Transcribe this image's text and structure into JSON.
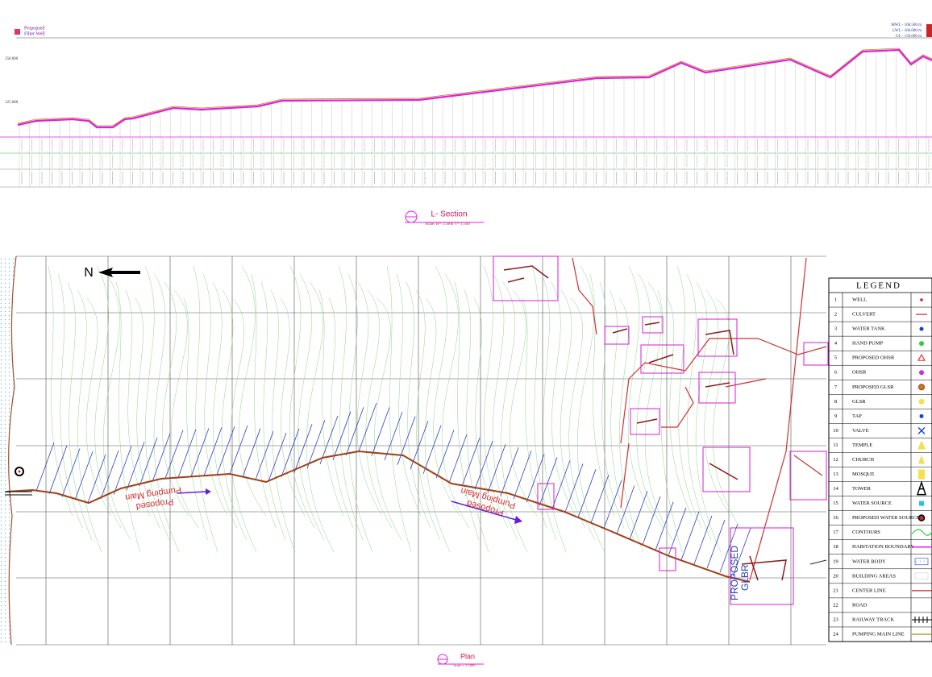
{
  "lsection": {
    "filter_well": [
      "Propopsed",
      "Filter Well"
    ],
    "levels": [
      "MWL - 168.500 m",
      "LWL - 166.000 m",
      "GL - 150.000 m"
    ],
    "axis_labels": [
      "150.000",
      "125.000"
    ],
    "title": "L- Section",
    "scale": "Scale: H= 1:5000  V= 1:500"
  },
  "plan": {
    "north": "N",
    "pumping_main": [
      "Proposed",
      "Pumping Main"
    ],
    "glbr": [
      "PROPOSED",
      "GLBR"
    ],
    "title": "Plan",
    "scale": "Scale = 1:5000"
  },
  "legend": {
    "title": "LEGEND",
    "items": [
      {
        "no": "1",
        "name": "WELL"
      },
      {
        "no": "2",
        "name": "CULVERT"
      },
      {
        "no": "3",
        "name": "WATER TANK"
      },
      {
        "no": "4",
        "name": "HAND PUMP"
      },
      {
        "no": "5",
        "name": "PROPOSED OHSR"
      },
      {
        "no": "6",
        "name": "OHSR"
      },
      {
        "no": "7",
        "name": "PROPOSED GLSR"
      },
      {
        "no": "8",
        "name": "GLSR"
      },
      {
        "no": "9",
        "name": "TAP"
      },
      {
        "no": "10",
        "name": "VALVE"
      },
      {
        "no": "11",
        "name": "TEMPLE"
      },
      {
        "no": "12",
        "name": "CHURCH"
      },
      {
        "no": "13",
        "name": "MOSQUE"
      },
      {
        "no": "14",
        "name": "TOWER"
      },
      {
        "no": "15",
        "name": "WATER SOURCE"
      },
      {
        "no": "16",
        "name": "PROPOSED WATER SOURCE"
      },
      {
        "no": "17",
        "name": "CONTOURS"
      },
      {
        "no": "18",
        "name": "HABITATION BOUNDARY"
      },
      {
        "no": "19",
        "name": "WATER BODY"
      },
      {
        "no": "20",
        "name": "BUILDING AREAS"
      },
      {
        "no": "21",
        "name": "CENTER LINE"
      },
      {
        "no": "22",
        "name": "ROAD"
      },
      {
        "no": "23",
        "name": "RAILWAY TRACK"
      },
      {
        "no": "24",
        "name": "PUMPING MAIN LINE"
      }
    ]
  }
}
